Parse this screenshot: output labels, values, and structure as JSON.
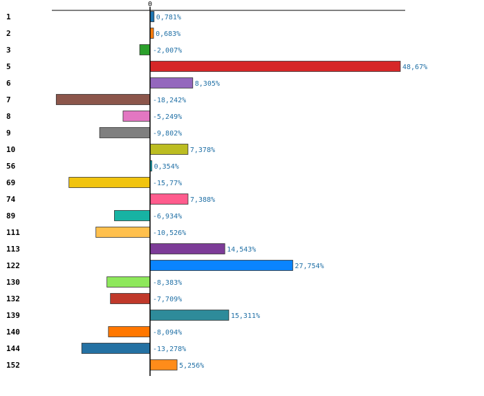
{
  "chart_data": {
    "type": "bar",
    "orientation": "horizontal",
    "title": "",
    "xlabel": "",
    "ylabel": "",
    "zero_label": "0",
    "categories": [
      "1",
      "2",
      "3",
      "5",
      "6",
      "7",
      "8",
      "9",
      "10",
      "56",
      "69",
      "74",
      "89",
      "111",
      "113",
      "122",
      "130",
      "132",
      "139",
      "140",
      "144",
      "152"
    ],
    "values": [
      0.781,
      0.683,
      -2.007,
      48.67,
      8.305,
      -18.242,
      -5.249,
      -9.802,
      7.378,
      0.354,
      -15.77,
      7.388,
      -6.934,
      -10.526,
      14.543,
      27.754,
      -8.383,
      -7.709,
      15.311,
      -8.094,
      -13.278,
      5.256
    ],
    "labels": [
      "0,781%",
      "0,683%",
      "-2,007%",
      "48,67%",
      "8,305%",
      "-18,242%",
      "-5,249%",
      "-9,802%",
      "7,378%",
      "0,354%",
      "-15,77%",
      "7,388%",
      "-6,934%",
      "-10,526%",
      "14,543%",
      "27,754%",
      "-8,383%",
      "-7,709%",
      "15,311%",
      "-8,094%",
      "-13,278%",
      "5,256%"
    ],
    "colors": [
      "#1f77b4",
      "#ff7f0e",
      "#2ca02c",
      "#d62728",
      "#9467bd",
      "#8c564b",
      "#e377c2",
      "#7f7f7f",
      "#bcbd22",
      "#17becf",
      "#f1c40f",
      "#ff5c8d",
      "#17b3a3",
      "#ffc04d",
      "#7d3c98",
      "#0a84ff",
      "#8ee85c",
      "#c0392b",
      "#2e8b9a",
      "#ff7700",
      "#2471a3",
      "#ff8c1a"
    ],
    "xlim": [
      -20,
      50
    ],
    "grid": false,
    "legend": "none"
  }
}
